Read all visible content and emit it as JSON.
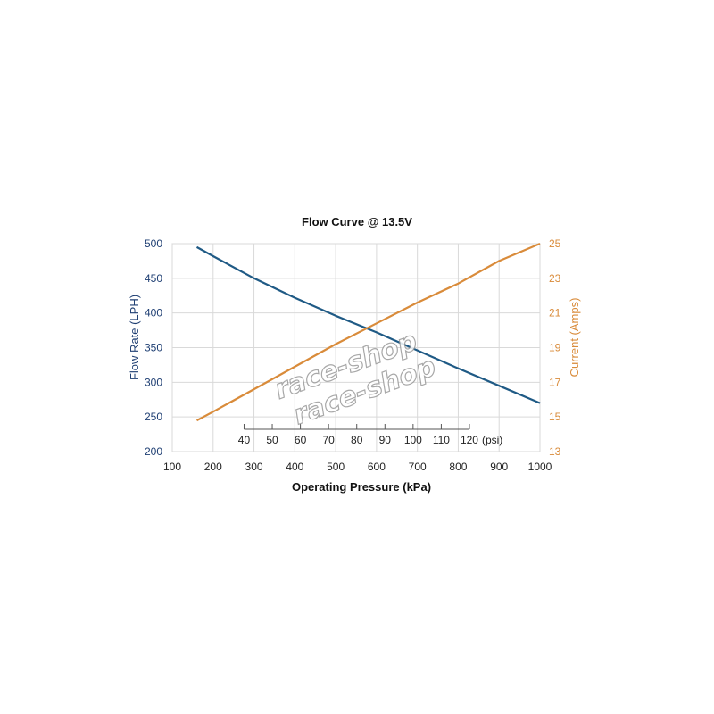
{
  "chart_data": {
    "type": "line",
    "title": "Flow Curve @ 13.5V",
    "xlabel": "Operating Pressure (kPa)",
    "ylabel_left": "Flow Rate (LPH)",
    "ylabel_right": "Current (Amps)",
    "xlim": [
      100,
      1000
    ],
    "x_ticks": [
      100,
      200,
      300,
      400,
      500,
      600,
      700,
      800,
      900,
      1000
    ],
    "ylim_left": [
      200,
      500
    ],
    "y_ticks_left": [
      200,
      250,
      300,
      350,
      400,
      450,
      500
    ],
    "ylim_right": [
      13,
      25
    ],
    "y_ticks_right": [
      13,
      15,
      17,
      19,
      21,
      23,
      25
    ],
    "psi_axis": {
      "ticks": [
        40,
        50,
        60,
        70,
        80,
        90,
        100,
        110,
        120
      ],
      "unit_label": "(psi)"
    },
    "grid": true,
    "series": [
      {
        "axis": "left",
        "color": "#1f5a85",
        "x": [
          160,
          200,
          300,
          400,
          500,
          600,
          700,
          800,
          900,
          1000
        ],
        "values": [
          495,
          482,
          450,
          422,
          396,
          372,
          346,
          320,
          295,
          270
        ]
      },
      {
        "axis": "right",
        "color": "#d98b3a",
        "x": [
          160,
          200,
          300,
          400,
          500,
          600,
          700,
          800,
          900,
          1000
        ],
        "values": [
          14.8,
          15.3,
          16.6,
          17.9,
          19.2,
          20.4,
          21.6,
          22.7,
          24.0,
          25.0
        ]
      }
    ],
    "watermark": "race-shop"
  }
}
